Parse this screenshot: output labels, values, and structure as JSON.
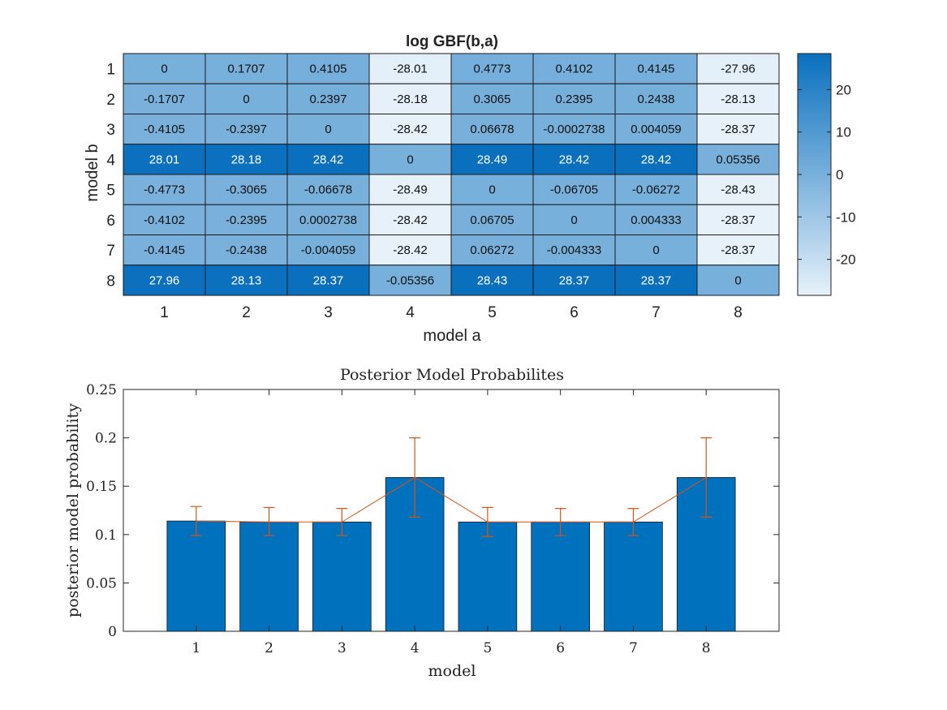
{
  "chart_data": [
    {
      "type": "heatmap",
      "title": "log GBF(b,a)",
      "xlabel": "model a",
      "ylabel": "model b",
      "x_labels": [
        "1",
        "2",
        "3",
        "4",
        "5",
        "6",
        "7",
        "8"
      ],
      "y_labels": [
        "1",
        "2",
        "3",
        "4",
        "5",
        "6",
        "7",
        "8"
      ],
      "cell_labels": [
        [
          "0",
          "0.1707",
          "0.4105",
          "-28.01",
          "0.4773",
          "0.4102",
          "0.4145",
          "-27.96"
        ],
        [
          "-0.1707",
          "0",
          "0.2397",
          "-28.18",
          "0.3065",
          "0.2395",
          "0.2438",
          "-28.13"
        ],
        [
          "-0.4105",
          "-0.2397",
          "0",
          "-28.42",
          "0.06678",
          "-0.0002738",
          "0.004059",
          "-28.37"
        ],
        [
          "28.01",
          "28.18",
          "28.42",
          "0",
          "28.49",
          "28.42",
          "28.42",
          "0.05356"
        ],
        [
          "-0.4773",
          "-0.3065",
          "-0.06678",
          "-28.49",
          "0",
          "-0.06705",
          "-0.06272",
          "-28.43"
        ],
        [
          "-0.4102",
          "-0.2395",
          "0.0002738",
          "-28.42",
          "0.06705",
          "0",
          "0.004333",
          "-28.37"
        ],
        [
          "-0.4145",
          "-0.2438",
          "-0.004059",
          "-28.42",
          "0.06272",
          "-0.004333",
          "0",
          "-28.37"
        ],
        [
          "27.96",
          "28.13",
          "28.37",
          "-0.05356",
          "28.43",
          "28.37",
          "28.37",
          "0"
        ]
      ],
      "color_limits": [
        -28.49,
        28.49
      ],
      "colorbar_ticks": [
        "20",
        "10",
        "0",
        "-10",
        "-20"
      ],
      "colormap": {
        "low": "#e6f1fa",
        "high": "#0a6fbd"
      }
    },
    {
      "type": "bar",
      "title": "Posterior Model Probabilites",
      "xlabel": "model",
      "ylabel": "posterior model probability",
      "categories": [
        "1",
        "2",
        "3",
        "4",
        "5",
        "6",
        "7",
        "8"
      ],
      "values": [
        0.114,
        0.113,
        0.113,
        0.159,
        0.113,
        0.113,
        0.113,
        0.159
      ],
      "error_low": [
        0.099,
        0.099,
        0.099,
        0.118,
        0.098,
        0.099,
        0.099,
        0.118
      ],
      "error_high": [
        0.129,
        0.128,
        0.127,
        0.2,
        0.128,
        0.127,
        0.127,
        0.2
      ],
      "ylim": [
        0,
        0.25
      ],
      "ytick_labels": [
        "0",
        "0.05",
        "0.1",
        "0.15",
        "0.2",
        "0.25"
      ],
      "bar_color": "#0072bd",
      "error_color": "#d95319"
    }
  ]
}
